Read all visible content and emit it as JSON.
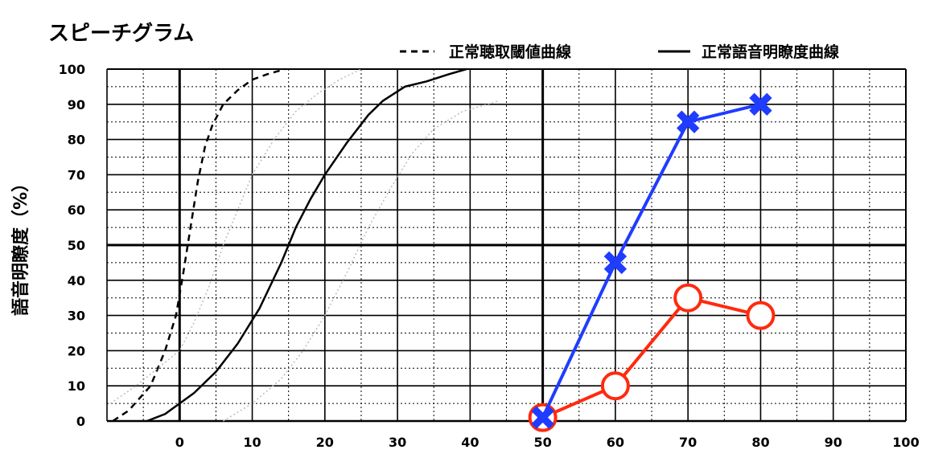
{
  "chart_data": {
    "type": "line",
    "title": "スピーチグラム",
    "ylabel": "語音明瞭度（%）",
    "xlabel": "",
    "xlim": [
      -10,
      100
    ],
    "ylim": [
      0,
      100
    ],
    "x_ticks": [
      0,
      10,
      20,
      30,
      40,
      50,
      60,
      70,
      80,
      90,
      100
    ],
    "y_ticks": [
      0,
      10,
      20,
      30,
      40,
      50,
      60,
      70,
      80,
      90,
      100
    ],
    "grid": true,
    "legend_position": "top-right",
    "legend": [
      {
        "name": "正常聴取閾値曲線",
        "style": "dashed",
        "color": "#000000"
      },
      {
        "name": "正常語音明瞭度曲線",
        "style": "solid",
        "color": "#000000"
      }
    ],
    "reference_curves": [
      {
        "name": "正常聴取閾値曲線",
        "style": "dashed",
        "color": "#000000",
        "x": [
          -9.2,
          -7,
          -4,
          -2,
          -0.5,
          0.5,
          1.5,
          2.5,
          3.5,
          4.5,
          6,
          8,
          10,
          12,
          14.5
        ],
        "y": [
          0,
          3,
          10,
          20,
          30,
          42,
          55,
          68,
          78,
          84,
          90,
          94,
          97,
          98.5,
          100
        ]
      },
      {
        "name": "正常語音明瞭度曲線",
        "style": "solid",
        "color": "#000000",
        "x": [
          -4.5,
          -2,
          0,
          2,
          5,
          8,
          11,
          14,
          16,
          18,
          20,
          23,
          26,
          28,
          31,
          34,
          37,
          39.5
        ],
        "y": [
          0,
          2,
          5,
          8,
          14,
          22,
          32,
          45,
          55,
          63,
          70,
          79,
          87,
          91,
          95,
          96.5,
          98.5,
          100
        ]
      },
      {
        "style": "dotted",
        "color": "#bbbbbb",
        "x": [
          -9.5,
          -6,
          -3,
          0,
          2,
          4,
          6,
          8,
          10,
          13,
          16,
          19,
          22,
          25
        ],
        "y": [
          5,
          10,
          15,
          20,
          28,
          38,
          50,
          60,
          70,
          80,
          88,
          93,
          97,
          100
        ]
      },
      {
        "style": "dotted",
        "color": "#bbbbbb",
        "x": [
          6,
          10,
          14,
          17,
          20,
          23,
          26,
          29,
          32,
          35,
          39,
          44
        ],
        "y": [
          0,
          5,
          12,
          20,
          30,
          42,
          55,
          66,
          76,
          83,
          88,
          91
        ]
      }
    ],
    "series": [
      {
        "color": "#1f3cff",
        "marker": "x",
        "x": [
          50,
          60,
          70,
          80
        ],
        "y": [
          1,
          45,
          85,
          90
        ]
      },
      {
        "color": "#ff2a0e",
        "marker": "o",
        "x": [
          50,
          60,
          70,
          80
        ],
        "y": [
          1,
          10,
          35,
          30
        ]
      }
    ]
  }
}
